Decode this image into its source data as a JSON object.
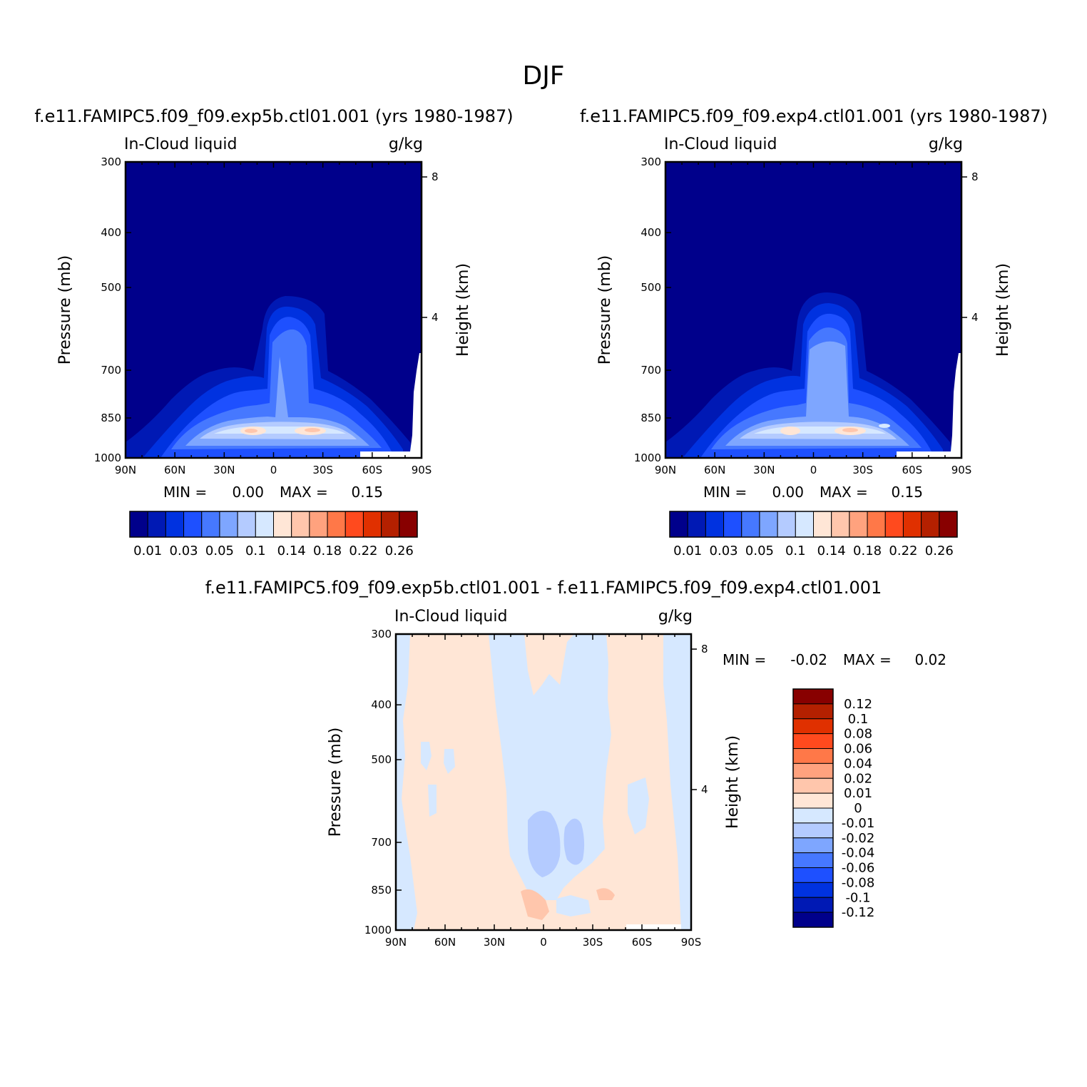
{
  "page_title": "DJF",
  "panels": [
    {
      "id": "top-left",
      "case": "f.e11.FAMIPC5.f09_f09.exp5b.ctl01.001 (yrs 1980-1987)",
      "variable": "In-Cloud liquid",
      "units": "g/kg",
      "min_label": "MIN =",
      "min_value": "0.00",
      "max_label": "MAX =",
      "max_value": "0.15"
    },
    {
      "id": "top-right",
      "case": "f.e11.FAMIPC5.f09_f09.exp4.ctl01.001 (yrs 1980-1987)",
      "variable": "In-Cloud liquid",
      "units": "g/kg",
      "min_label": "MIN =",
      "min_value": "0.00",
      "max_label": "MAX =",
      "max_value": "0.15"
    },
    {
      "id": "bottom-diff",
      "case": "f.e11.FAMIPC5.f09_f09.exp5b.ctl01.001 - f.e11.FAMIPC5.f09_f09.exp4.ctl01.001",
      "variable": "In-Cloud liquid",
      "units": "g/kg",
      "min_label": "MIN =",
      "min_value": "-0.02",
      "max_label": "MAX =",
      "max_value": "0.02"
    }
  ],
  "axes": {
    "ylabel": "Pressure (mb)",
    "ylabel_right": "Height (km)",
    "x_ticks": [
      "90N",
      "60N",
      "30N",
      "0",
      "30S",
      "60S",
      "90S"
    ],
    "y_ticks": [
      "300",
      "400",
      "500",
      "700",
      "850",
      "1000"
    ],
    "height_ticks": [
      "8",
      "4"
    ]
  },
  "colorbar_top": {
    "colors": [
      "#00008b",
      "#0019b4",
      "#0032e0",
      "#1e50ff",
      "#4678ff",
      "#7ea6ff",
      "#b4cbff",
      "#d6e8ff",
      "#ffe6d6",
      "#ffc6ac",
      "#ffa27e",
      "#ff7848",
      "#ff4a1e",
      "#e03000",
      "#b42000",
      "#880000"
    ],
    "labels": [
      "0.01",
      "0.03",
      "0.05",
      "0.1",
      "0.14",
      "0.18",
      "0.22",
      "0.26"
    ]
  },
  "colorbar_diff": {
    "colors": [
      "#880000",
      "#b42000",
      "#e03000",
      "#ff4a1e",
      "#ff7848",
      "#ffa27e",
      "#ffc6ac",
      "#ffe6d6",
      "#d6e8ff",
      "#b4cbff",
      "#7ea6ff",
      "#4678ff",
      "#1e50ff",
      "#0032e0",
      "#0019b4",
      "#00008b"
    ],
    "labels": [
      "0.12",
      "0.1",
      "0.08",
      "0.06",
      "0.04",
      "0.02",
      "0.01",
      "0",
      "-0.01",
      "-0.02",
      "-0.04",
      "-0.06",
      "-0.08",
      "-0.1",
      "-0.12"
    ]
  },
  "chart_data": [
    {
      "type": "heatmap",
      "title": "f.e11.FAMIPC5.f09_f09.exp5b.ctl01.001 (yrs 1980-1987)",
      "xlabel": "",
      "ylabel": "Pressure (mb)",
      "x_ticks": [
        "90N",
        "60N",
        "30N",
        "0",
        "30S",
        "60S",
        "90S"
      ],
      "y_ticks": [
        300,
        400,
        500,
        700,
        850,
        1000
      ],
      "ylim": [
        1000,
        300
      ],
      "min": 0.0,
      "max": 0.15,
      "peak_locations": [
        {
          "lat": "15N",
          "pressure": 900,
          "value": 0.15
        },
        {
          "lat": "20S",
          "pressure": 900,
          "value": 0.15
        }
      ]
    },
    {
      "type": "heatmap",
      "title": "f.e11.FAMIPC5.f09_f09.exp4.ctl01.001 (yrs 1980-1987)",
      "xlabel": "",
      "ylabel": "Pressure (mb)",
      "x_ticks": [
        "90N",
        "60N",
        "30N",
        "0",
        "30S",
        "60S",
        "90S"
      ],
      "y_ticks": [
        300,
        400,
        500,
        700,
        850,
        1000
      ],
      "ylim": [
        1000,
        300
      ],
      "min": 0.0,
      "max": 0.15
    },
    {
      "type": "heatmap",
      "title": "f.e11.FAMIPC5.f09_f09.exp5b.ctl01.001 - f.e11.FAMIPC5.f09_f09.exp4.ctl01.001",
      "xlabel": "",
      "ylabel": "Pressure (mb)",
      "x_ticks": [
        "90N",
        "60N",
        "30N",
        "0",
        "30S",
        "60S",
        "90S"
      ],
      "y_ticks": [
        300,
        400,
        500,
        700,
        850,
        1000
      ],
      "ylim": [
        1000,
        300
      ],
      "min": -0.02,
      "max": 0.02
    }
  ]
}
